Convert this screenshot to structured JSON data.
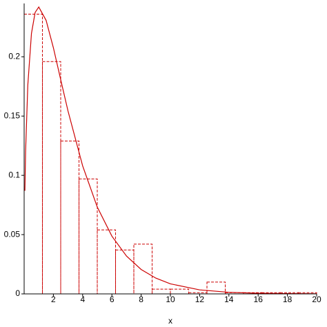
{
  "chart_data": {
    "type": "histogram-density",
    "xlabel": "x",
    "bins": [
      0,
      1.25,
      2.5,
      3.75,
      5,
      6.25,
      7.5,
      8.75,
      10,
      11.25,
      12.5,
      13.75,
      15,
      16.25,
      17.5,
      18.75,
      20
    ],
    "counts": [
      0.236,
      0.196,
      0.129,
      0.097,
      0.054,
      0.037,
      0.042,
      0.004,
      0.004,
      0.001,
      0.01,
      0.001,
      0.001,
      0.001,
      0.001,
      0.001
    ],
    "bar_color": "#cc0000",
    "curve": {
      "color": "#cc0000",
      "x": [
        0.05,
        0.1,
        0.25,
        0.5,
        0.75,
        1,
        1.5,
        2,
        2.5,
        3,
        4,
        5,
        6,
        7,
        8,
        9,
        10,
        12,
        14,
        16,
        18,
        20
      ],
      "y": [
        0.087,
        0.12,
        0.176,
        0.2197,
        0.2374,
        0.242,
        0.2308,
        0.2076,
        0.1807,
        0.1542,
        0.108,
        0.0732,
        0.0487,
        0.0319,
        0.0206,
        0.0133,
        0.0085,
        0.0034,
        0.00136,
        0.00053,
        0.00021,
        8e-05
      ]
    },
    "xlim": [
      0,
      20
    ],
    "ylim": [
      0,
      0.245
    ],
    "xticks": [
      2,
      4,
      6,
      8,
      10,
      12,
      14,
      16,
      18,
      20
    ],
    "yticks": [
      0,
      0.05,
      0.1,
      0.15,
      0.2
    ]
  }
}
